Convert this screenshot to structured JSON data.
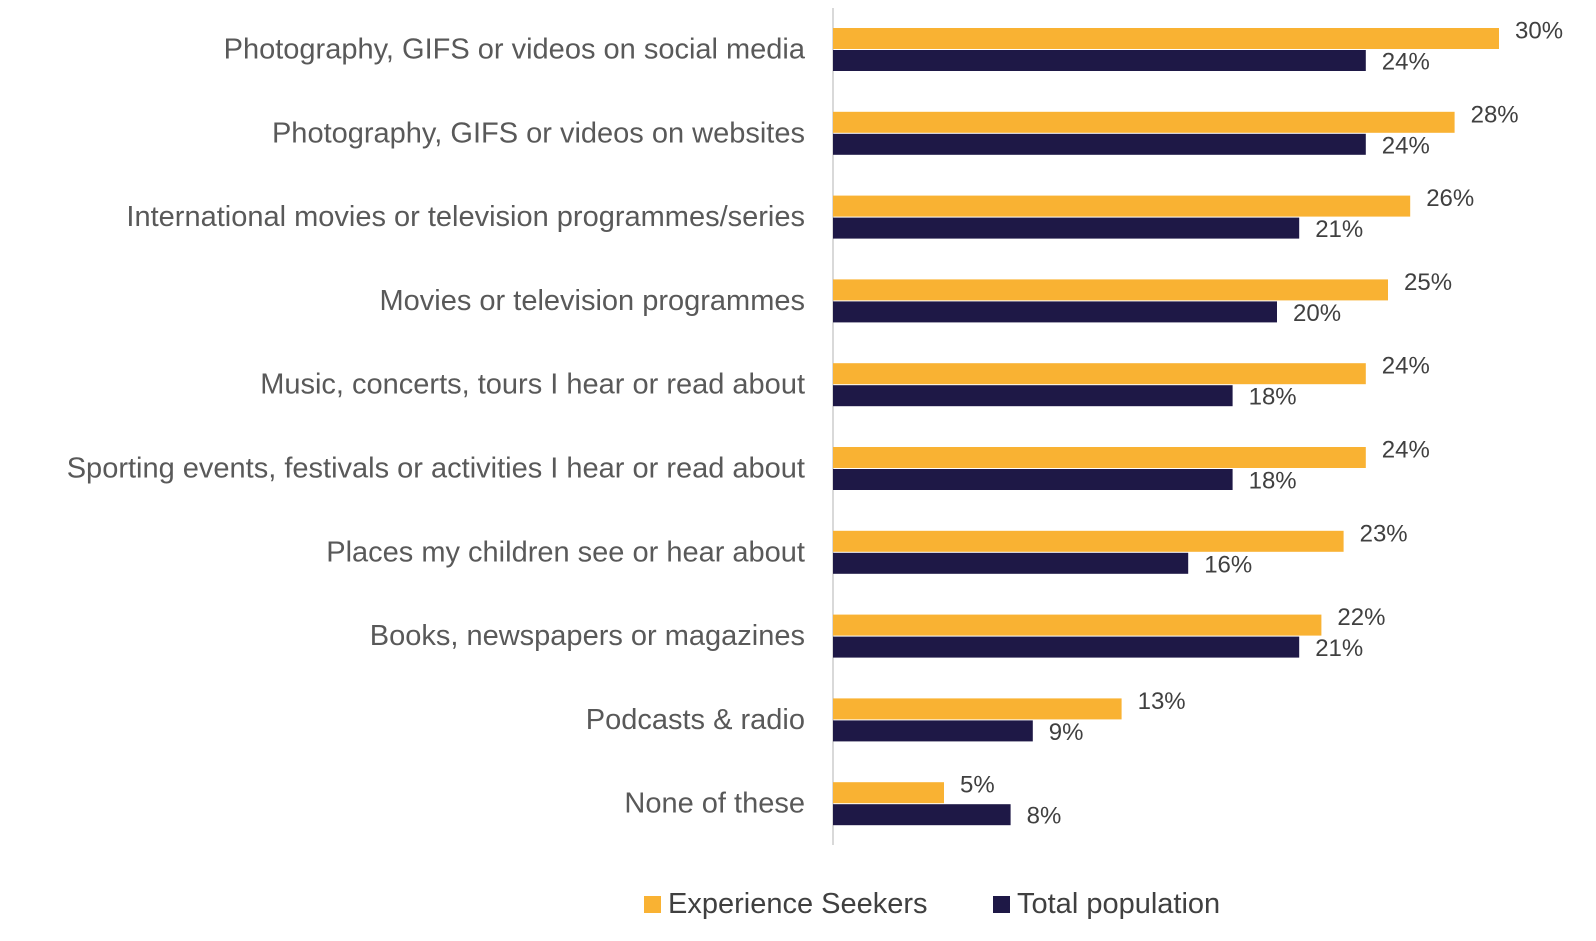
{
  "chart_data": {
    "type": "bar",
    "orientation": "horizontal",
    "categories": [
      "Photography, GIFS or videos on social media",
      "Photography, GIFS or videos on websites",
      "International movies or television programmes/series",
      "Movies or television programmes",
      "Music, concerts, tours I hear or read about",
      "Sporting events, festivals or activities I hear or read about",
      "Places my children see or hear about",
      "Books, newspapers or magazines",
      "Podcasts & radio",
      "None of these"
    ],
    "series": [
      {
        "name": "Experience Seekers",
        "color": "#F9B233",
        "values": [
          30,
          28,
          26,
          25,
          24,
          24,
          23,
          22,
          13,
          5
        ],
        "labels": [
          "30%",
          "28%",
          "26%",
          "25%",
          "24%",
          "24%",
          "23%",
          "22%",
          "13%",
          "5%"
        ]
      },
      {
        "name": "Total population",
        "color": "#1E1846",
        "values": [
          24,
          24,
          21,
          20,
          18,
          18,
          16,
          21,
          9,
          8
        ],
        "labels": [
          "24%",
          "24%",
          "21%",
          "20%",
          "18%",
          "18%",
          "16%",
          "21%",
          "9%",
          "8%"
        ]
      }
    ],
    "title": "",
    "xlabel": "",
    "ylabel": "",
    "xlim": [
      0,
      30
    ],
    "grid": false,
    "legend": "bottom",
    "axis_color": "#D9D9D9"
  }
}
